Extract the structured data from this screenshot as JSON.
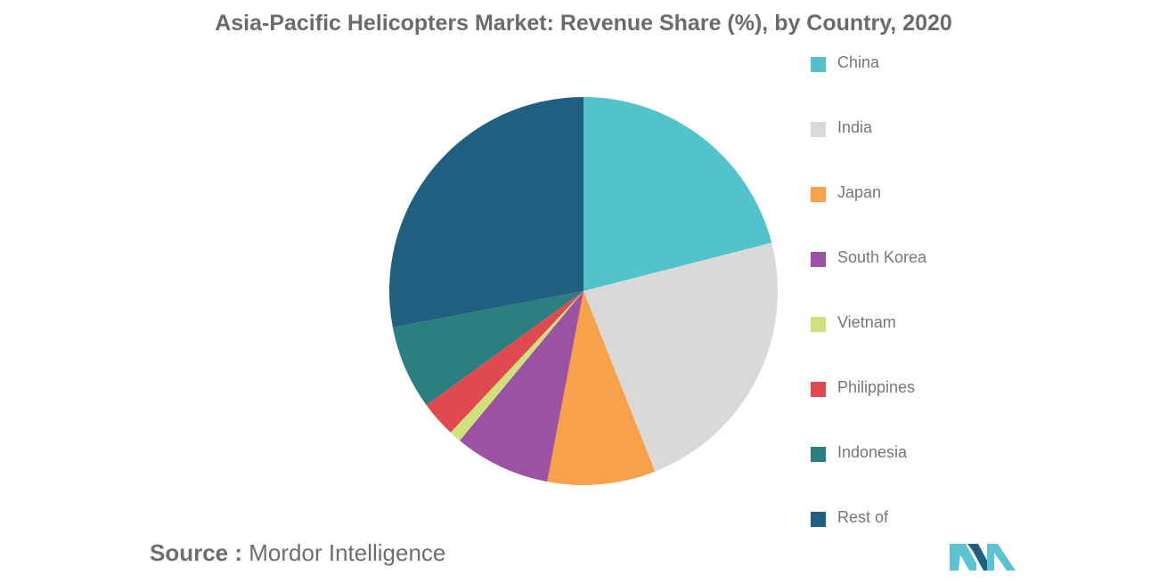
{
  "title": "Asia-Pacific Helicopters Market: Revenue Share (%), by Country, 2020",
  "source": {
    "prefix": "Source :",
    "text": "Mordor Intelligence"
  },
  "colors": {
    "China": "#52c3cb",
    "India": "#d9d9d9",
    "Japan": "#f9a04a",
    "South Korea": "#9b52a3",
    "Vietnam": "#cfe27a",
    "Philippines": "#e04a4e",
    "Indonesia": "#2b7f80",
    "Rest of": "#215f80"
  },
  "logo_colors": {
    "light": "#5bc3d1",
    "dark": "#215f80"
  },
  "chart_data": {
    "type": "pie",
    "title": "Asia-Pacific Helicopters Market: Revenue Share (%), by Country, 2020",
    "categories": [
      "China",
      "India",
      "Japan",
      "South Korea",
      "Vietnam",
      "Philippines",
      "Indonesia",
      "Rest of"
    ],
    "values": [
      21,
      23,
      9,
      8,
      1,
      3,
      7,
      28
    ],
    "unit": "%",
    "start_angle_deg": 0,
    "direction": "clockwise",
    "legend": "right"
  }
}
